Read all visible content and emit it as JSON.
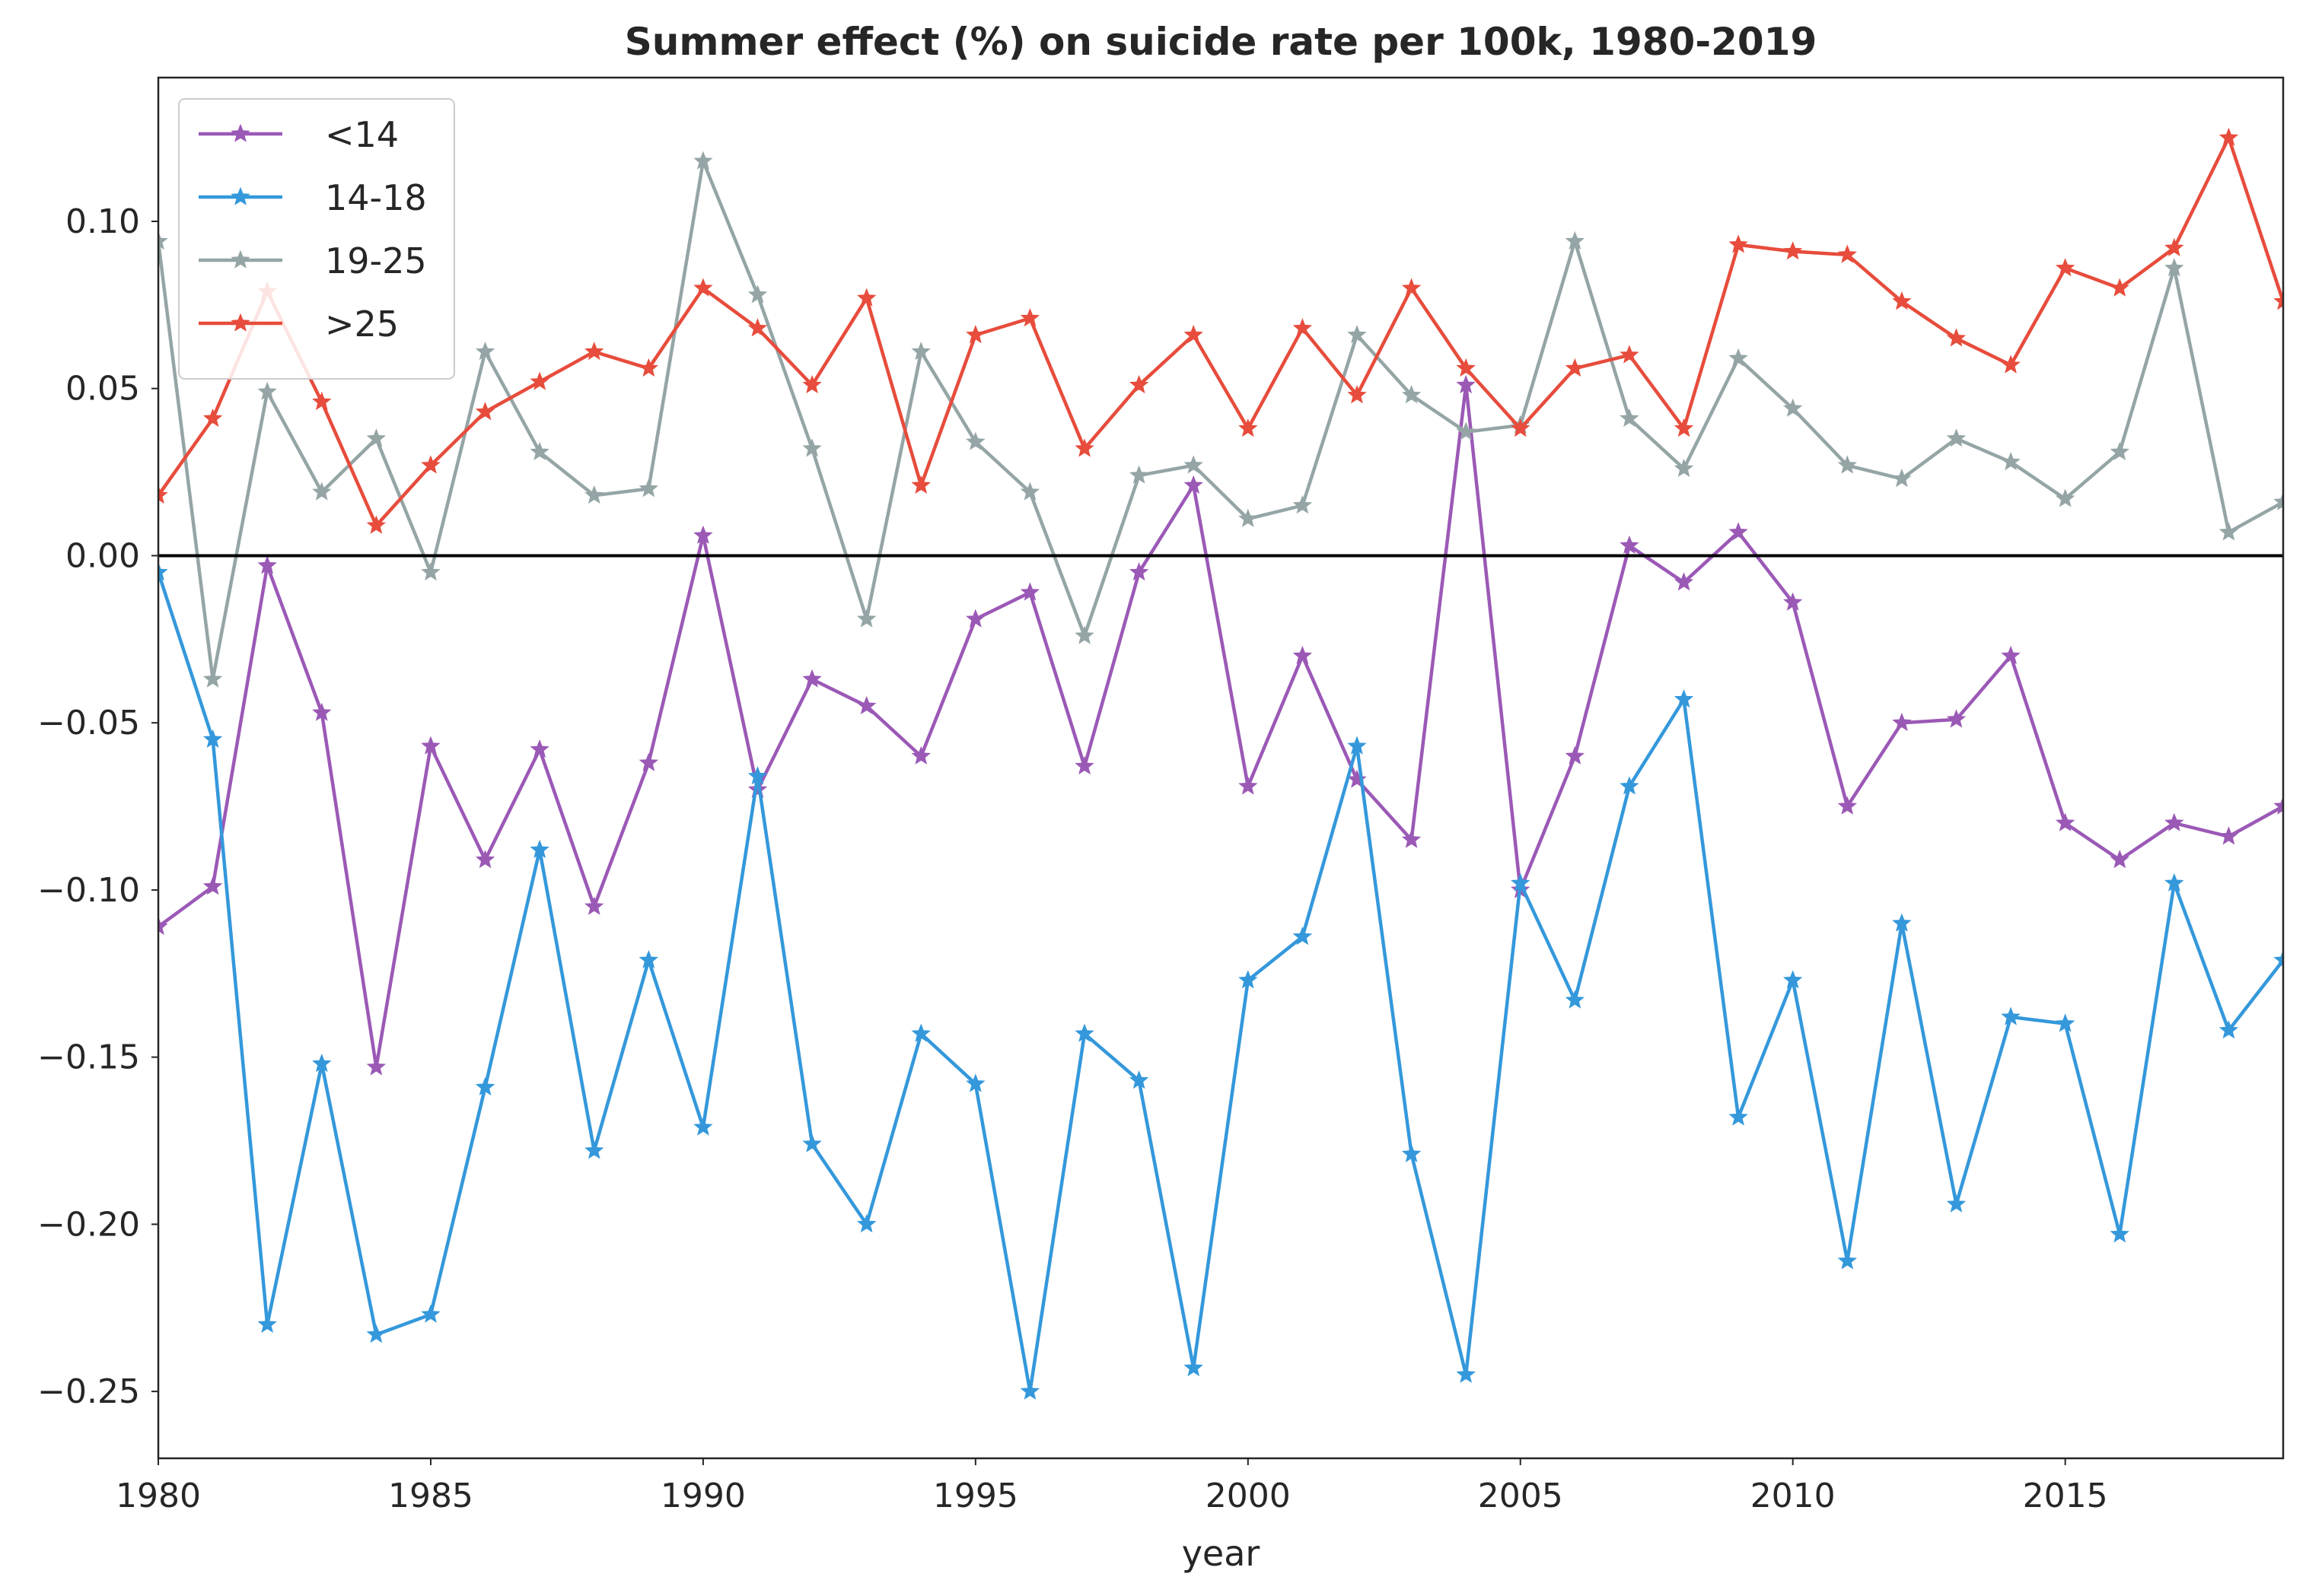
{
  "chart_data": {
    "type": "line",
    "title": "Summer effect (%) on suicide rate per 100k, 1980-2019",
    "xlabel": "year",
    "ylabel": "",
    "xlim": [
      1980,
      2019
    ],
    "ylim": [
      -0.27,
      0.143
    ],
    "x_ticks": [
      1980,
      1985,
      1990,
      1995,
      2000,
      2005,
      2010,
      2015
    ],
    "x_tick_labels": [
      "1980",
      "1985",
      "1990",
      "1995",
      "2000",
      "2005",
      "2010",
      "2015"
    ],
    "y_ticks": [
      0.1,
      0.05,
      0.0,
      -0.05,
      -0.1,
      -0.15,
      -0.2,
      -0.25
    ],
    "y_tick_labels": [
      "0.10",
      "0.05",
      "0.00",
      "−0.05",
      "−0.10",
      "−0.15",
      "−0.20",
      "−0.25"
    ],
    "zero_line": 0.0,
    "grid": false,
    "legend_position": "upper-left",
    "marker": "star",
    "x": [
      1980,
      1981,
      1982,
      1983,
      1984,
      1985,
      1986,
      1987,
      1988,
      1989,
      1990,
      1991,
      1992,
      1993,
      1994,
      1995,
      1996,
      1997,
      1998,
      1999,
      2000,
      2001,
      2002,
      2003,
      2004,
      2005,
      2006,
      2007,
      2008,
      2009,
      2010,
      2011,
      2012,
      2013,
      2014,
      2015,
      2016,
      2017,
      2018,
      2019
    ],
    "series": [
      {
        "name": "<14",
        "color": "#9b59b6",
        "values": [
          -0.111,
          -0.099,
          -0.003,
          -0.047,
          -0.153,
          -0.057,
          -0.091,
          -0.058,
          -0.105,
          -0.062,
          0.006,
          -0.07,
          -0.037,
          -0.045,
          -0.06,
          -0.019,
          -0.011,
          -0.063,
          -0.005,
          0.021,
          -0.069,
          -0.03,
          -0.067,
          -0.085,
          0.051,
          -0.1,
          -0.06,
          0.003,
          -0.008,
          0.007,
          -0.014,
          -0.075,
          -0.05,
          -0.049,
          -0.03,
          -0.08,
          -0.091,
          -0.08,
          -0.084,
          -0.075
        ]
      },
      {
        "name": "14-18",
        "color": "#3498db",
        "values": [
          -0.005,
          -0.055,
          -0.23,
          -0.152,
          -0.233,
          -0.227,
          -0.159,
          -0.088,
          -0.178,
          -0.121,
          -0.171,
          -0.066,
          -0.176,
          -0.2,
          -0.143,
          -0.158,
          -0.25,
          -0.143,
          -0.157,
          -0.243,
          -0.127,
          -0.114,
          -0.057,
          -0.179,
          -0.245,
          -0.098,
          -0.133,
          -0.069,
          -0.043,
          -0.168,
          -0.127,
          -0.211,
          -0.11,
          -0.194,
          -0.138,
          -0.14,
          -0.203,
          -0.098,
          -0.142,
          -0.121
        ]
      },
      {
        "name": "19-25",
        "color": "#95a5a6",
        "values": [
          0.094,
          -0.037,
          0.049,
          0.019,
          0.035,
          -0.005,
          0.061,
          0.031,
          0.018,
          0.02,
          0.118,
          0.078,
          0.032,
          -0.019,
          0.061,
          0.034,
          0.019,
          -0.024,
          0.024,
          0.027,
          0.011,
          0.015,
          0.066,
          0.048,
          0.037,
          0.039,
          0.094,
          0.041,
          0.026,
          0.059,
          0.044,
          0.027,
          0.023,
          0.035,
          0.028,
          0.017,
          0.031,
          0.086,
          0.007,
          0.016
        ]
      },
      {
        "name": ">25",
        "color": "#e74c3c",
        "values": [
          0.018,
          0.041,
          0.079,
          0.046,
          0.009,
          0.027,
          0.043,
          0.052,
          0.061,
          0.056,
          0.08,
          0.068,
          0.051,
          0.077,
          0.021,
          0.066,
          0.071,
          0.032,
          0.051,
          0.066,
          0.038,
          0.068,
          0.048,
          0.08,
          0.056,
          0.038,
          0.056,
          0.06,
          0.038,
          0.093,
          0.091,
          0.09,
          0.076,
          0.065,
          0.057,
          0.086,
          0.08,
          0.092,
          0.125,
          0.076
        ]
      }
    ]
  }
}
